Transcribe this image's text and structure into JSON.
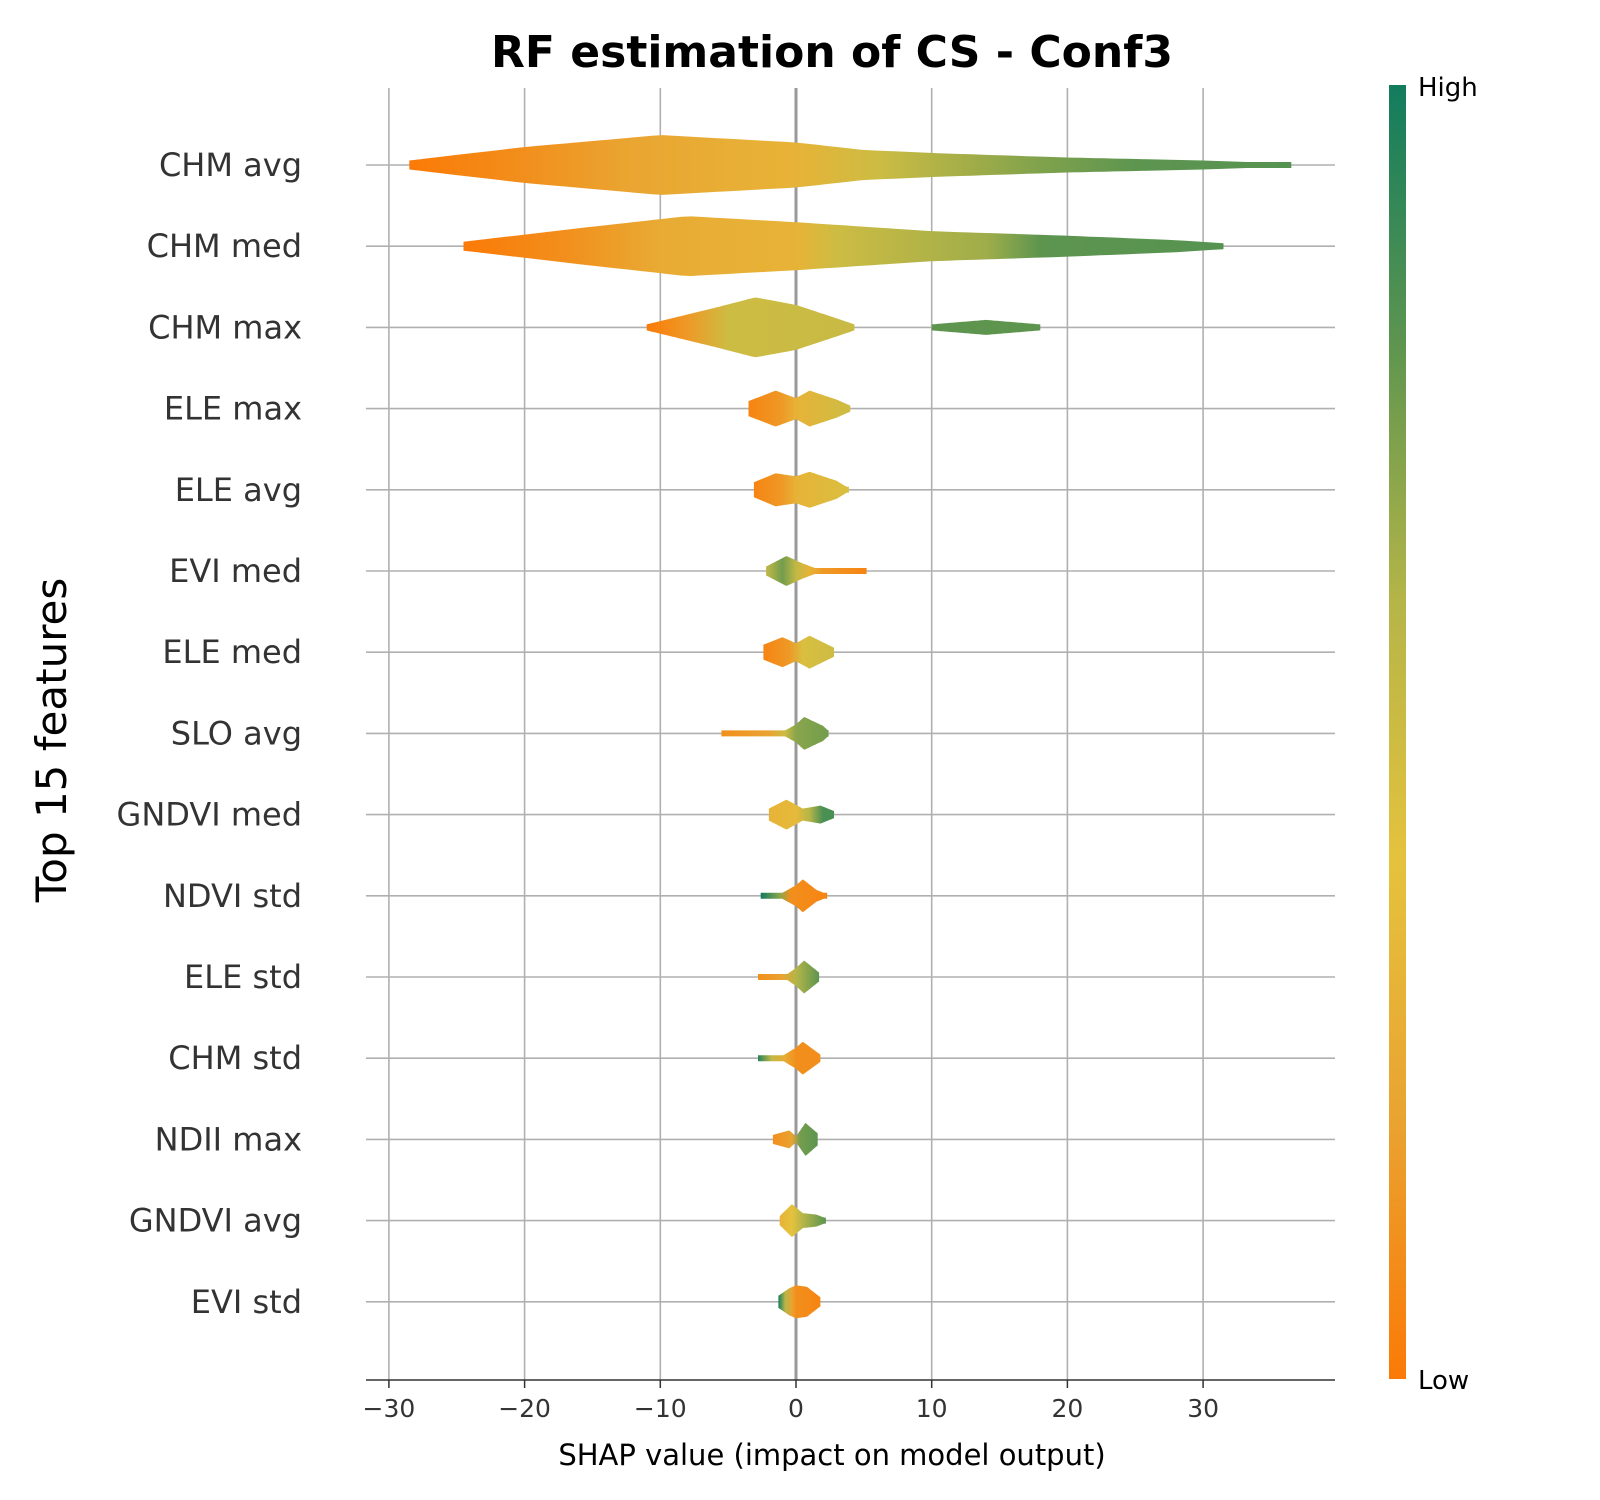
{
  "chart_data": {
    "type": "violin",
    "title": "RF estimation of CS - Conf3",
    "xlabel": "SHAP value (impact on model output)",
    "ylabel": "Top 15 features",
    "xlim": [
      -32,
      40
    ],
    "xticks": [
      -30,
      -20,
      -10,
      0,
      10,
      20,
      30
    ],
    "xtick_labels": [
      "−30",
      "−20",
      "−10",
      "0",
      "10",
      "20",
      "30"
    ],
    "grid": true,
    "colorbar": {
      "high_label": "High",
      "low_label": "Low",
      "colors": [
        "#fb7a07",
        "#e9a331",
        "#e5c23d",
        "#b5b548",
        "#5d954f",
        "#127c5e"
      ]
    },
    "features": [
      {
        "name": "CHM avg",
        "min": -28.5,
        "max": 36.5,
        "stops": [
          [
            -28.5,
            0.15
          ],
          [
            -20,
            0.6
          ],
          [
            -10,
            1.0
          ],
          [
            0,
            0.75
          ],
          [
            5,
            0.5
          ],
          [
            10,
            0.4
          ],
          [
            20,
            0.25
          ],
          [
            30,
            0.15
          ],
          [
            36.5,
            0.05
          ]
        ],
        "color_stops": [
          [
            -28.5,
            0.0
          ],
          [
            -20,
            0.1
          ],
          [
            -12,
            0.22
          ],
          [
            0,
            0.3
          ],
          [
            6,
            0.5
          ],
          [
            18,
            0.72
          ],
          [
            25,
            0.8
          ],
          [
            36.5,
            0.82
          ]
        ]
      },
      {
        "name": "CHM med",
        "min": -24.5,
        "max": 31.5,
        "stops": [
          [
            -24.5,
            0.15
          ],
          [
            -15,
            0.65
          ],
          [
            -8,
            1.0
          ],
          [
            0,
            0.8
          ],
          [
            10,
            0.5
          ],
          [
            20,
            0.35
          ],
          [
            28,
            0.2
          ],
          [
            31.5,
            0.1
          ]
        ],
        "color_stops": [
          [
            -24.5,
            0.0
          ],
          [
            -17,
            0.1
          ],
          [
            -10,
            0.25
          ],
          [
            0,
            0.3
          ],
          [
            3,
            0.5
          ],
          [
            14,
            0.65
          ],
          [
            18,
            0.8
          ],
          [
            31.5,
            0.82
          ]
        ]
      },
      {
        "name": "CHM max",
        "min": -11,
        "max": 4.3,
        "stops": [
          [
            -11,
            0.1
          ],
          [
            -6,
            0.65
          ],
          [
            -3,
            1.0
          ],
          [
            0,
            0.75
          ],
          [
            3,
            0.3
          ],
          [
            4.3,
            0.1
          ]
        ],
        "color_stops": [
          [
            -11,
            0.0
          ],
          [
            -8,
            0.15
          ],
          [
            -5,
            0.5
          ],
          [
            4.3,
            0.52
          ]
        ],
        "extra": {
          "min": 10,
          "max": 18,
          "stops": [
            [
              10,
              0.1
            ],
            [
              14,
              0.25
            ],
            [
              18,
              0.1
            ]
          ],
          "color_stops": [
            [
              10,
              0.8
            ],
            [
              18,
              0.8
            ]
          ]
        }
      },
      {
        "name": "ELE max",
        "min": -3.5,
        "max": 4,
        "stops": [
          [
            -3.5,
            0.25
          ],
          [
            -1.5,
            0.6
          ],
          [
            0,
            0.35
          ],
          [
            1,
            0.6
          ],
          [
            3,
            0.3
          ],
          [
            4,
            0.1
          ]
        ],
        "color_stops": [
          [
            -3.5,
            0.05
          ],
          [
            -1,
            0.15
          ],
          [
            0,
            0.3
          ],
          [
            4,
            0.5
          ]
        ]
      },
      {
        "name": "ELE avg",
        "min": -3.1,
        "max": 3.9,
        "stops": [
          [
            -3.1,
            0.25
          ],
          [
            -1.5,
            0.55
          ],
          [
            0,
            0.45
          ],
          [
            1,
            0.6
          ],
          [
            3,
            0.3
          ],
          [
            3.9,
            0.05
          ]
        ],
        "color_stops": [
          [
            -3.1,
            0.05
          ],
          [
            -1,
            0.15
          ],
          [
            0,
            0.3
          ],
          [
            3.9,
            0.45
          ]
        ]
      },
      {
        "name": "EVI med",
        "min": -2.2,
        "max": 5.2,
        "stops": [
          [
            -2.2,
            0.15
          ],
          [
            -0.7,
            0.5
          ],
          [
            0.5,
            0.25
          ],
          [
            1.7,
            0.05
          ],
          [
            5.2,
            0.05
          ]
        ],
        "color_stops": [
          [
            -2.2,
            0.55
          ],
          [
            -1,
            0.75
          ],
          [
            0,
            0.55
          ],
          [
            1,
            0.3
          ],
          [
            2,
            0.15
          ],
          [
            5.2,
            0.05
          ]
        ]
      },
      {
        "name": "ELE med",
        "min": -2.4,
        "max": 2.8,
        "stops": [
          [
            -2.4,
            0.25
          ],
          [
            -1,
            0.5
          ],
          [
            0,
            0.3
          ],
          [
            1,
            0.55
          ],
          [
            2.8,
            0.15
          ]
        ],
        "color_stops": [
          [
            -2.4,
            0.05
          ],
          [
            -0.5,
            0.15
          ],
          [
            0.5,
            0.45
          ],
          [
            2.8,
            0.5
          ]
        ]
      },
      {
        "name": "SLO avg",
        "min": -5.5,
        "max": 2.4,
        "stops": [
          [
            -5.5,
            0.05
          ],
          [
            -1,
            0.05
          ],
          [
            0,
            0.3
          ],
          [
            0.6,
            0.55
          ],
          [
            2,
            0.25
          ],
          [
            2.4,
            0.08
          ]
        ],
        "color_stops": [
          [
            -5.5,
            0.1
          ],
          [
            -2,
            0.2
          ],
          [
            -0.8,
            0.5
          ],
          [
            0,
            0.7
          ],
          [
            2.4,
            0.75
          ]
        ]
      },
      {
        "name": "GNDVI med",
        "min": -2,
        "max": 2.8,
        "stops": [
          [
            -2,
            0.2
          ],
          [
            -0.7,
            0.5
          ],
          [
            0.5,
            0.2
          ],
          [
            1.8,
            0.3
          ],
          [
            2.8,
            0.12
          ]
        ],
        "color_stops": [
          [
            -2,
            0.3
          ],
          [
            0,
            0.35
          ],
          [
            1,
            0.6
          ],
          [
            2,
            0.85
          ],
          [
            2.8,
            0.85
          ]
        ]
      },
      {
        "name": "NDVI std",
        "min": -2.6,
        "max": 2.3,
        "stops": [
          [
            -2.6,
            0.1
          ],
          [
            -1,
            0.1
          ],
          [
            0,
            0.35
          ],
          [
            0.5,
            0.55
          ],
          [
            1.5,
            0.2
          ],
          [
            2.3,
            0.05
          ]
        ],
        "color_stops": [
          [
            -2.6,
            1.0
          ],
          [
            -1.2,
            0.7
          ],
          [
            -0.4,
            0.1
          ],
          [
            2.3,
            0.05
          ]
        ]
      },
      {
        "name": "ELE std",
        "min": -2.8,
        "max": 1.7,
        "stops": [
          [
            -2.8,
            0.05
          ],
          [
            -0.8,
            0.05
          ],
          [
            0,
            0.3
          ],
          [
            0.6,
            0.55
          ],
          [
            1.7,
            0.15
          ]
        ],
        "color_stops": [
          [
            -2.8,
            0.1
          ],
          [
            -1,
            0.2
          ],
          [
            0,
            0.6
          ],
          [
            1.7,
            0.8
          ]
        ]
      },
      {
        "name": "CHM std",
        "min": -2.8,
        "max": 1.8,
        "stops": [
          [
            -2.8,
            0.08
          ],
          [
            -1,
            0.08
          ],
          [
            0,
            0.35
          ],
          [
            0.5,
            0.55
          ],
          [
            1.8,
            0.12
          ]
        ],
        "color_stops": [
          [
            -2.8,
            0.95
          ],
          [
            -1.8,
            0.55
          ],
          [
            -0.8,
            0.25
          ],
          [
            0,
            0.1
          ],
          [
            1.8,
            0.1
          ]
        ]
      },
      {
        "name": "NDII max",
        "min": -1.7,
        "max": 1.6,
        "stops": [
          [
            -1.7,
            0.15
          ],
          [
            -0.5,
            0.3
          ],
          [
            0,
            0.1
          ],
          [
            0.7,
            0.55
          ],
          [
            1.6,
            0.2
          ]
        ],
        "color_stops": [
          [
            -1.7,
            0.1
          ],
          [
            -0.3,
            0.2
          ],
          [
            0.3,
            0.75
          ],
          [
            1.6,
            0.8
          ]
        ]
      },
      {
        "name": "GNDVI avg",
        "min": -1.2,
        "max": 2.2,
        "stops": [
          [
            -1.2,
            0.15
          ],
          [
            -0.3,
            0.55
          ],
          [
            0.5,
            0.25
          ],
          [
            1.5,
            0.2
          ],
          [
            2.2,
            0.08
          ]
        ],
        "color_stops": [
          [
            -1.2,
            0.3
          ],
          [
            -0.3,
            0.4
          ],
          [
            0.5,
            0.6
          ],
          [
            2.2,
            0.8
          ]
        ]
      },
      {
        "name": "EVI std",
        "min": -1.3,
        "max": 1.8,
        "stops": [
          [
            -1.3,
            0.2
          ],
          [
            -0.5,
            0.45
          ],
          [
            0,
            0.55
          ],
          [
            0.8,
            0.5
          ],
          [
            1.8,
            0.15
          ]
        ],
        "color_stops": [
          [
            -1.3,
            1.0
          ],
          [
            -0.8,
            0.6
          ],
          [
            -0.3,
            0.2
          ],
          [
            0,
            0.1
          ],
          [
            1.8,
            0.05
          ]
        ]
      }
    ]
  }
}
